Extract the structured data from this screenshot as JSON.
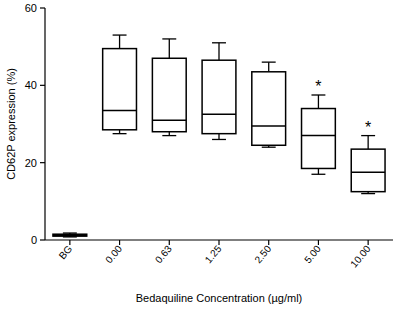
{
  "chart_data": {
    "type": "box",
    "categories": [
      "BG",
      "0.00",
      "0.63",
      "1.25",
      "2.50",
      "5.00",
      "10.00"
    ],
    "min": [
      0.8,
      27.5,
      27,
      26,
      24,
      17,
      12
    ],
    "q1": [
      1.0,
      28.5,
      28,
      27.5,
      24.5,
      18.5,
      12.5
    ],
    "median": [
      1.2,
      33.5,
      31,
      32.5,
      29.5,
      27,
      17.5
    ],
    "q3": [
      1.5,
      49.5,
      47,
      46.5,
      43.5,
      34,
      23.5
    ],
    "max": [
      1.8,
      53,
      52,
      51,
      46,
      37.5,
      27
    ],
    "color": "#000000",
    "ylim": [
      0,
      60
    ],
    "yticks": [
      0,
      20,
      40,
      60
    ],
    "y_label": "CD62P expression (%)",
    "x_label": "Bedaquiline Concentration (µg/ml)",
    "annotations": [
      {
        "category": "5.00",
        "text": "*"
      },
      {
        "category": "10.00",
        "text": "*"
      }
    ],
    "grid": false
  }
}
